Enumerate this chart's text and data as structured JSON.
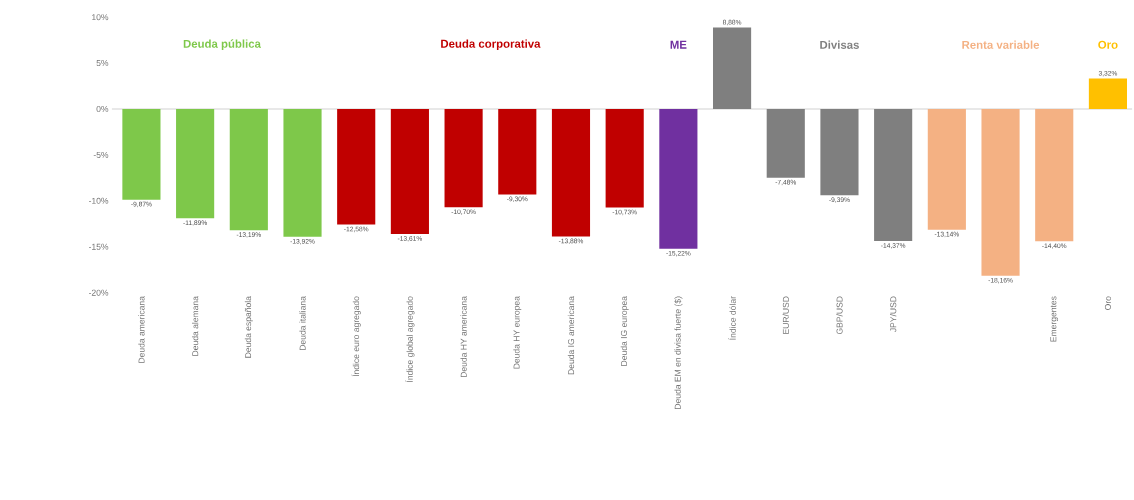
{
  "chart_data": {
    "type": "bar",
    "categories": [
      "Deuda americana",
      "Deuda alemana",
      "Deuda española",
      "Deuda italiana",
      "Índice euro agregado",
      "Índice global agregado",
      "Deuda HY americana",
      "Deuda HY europea",
      "Deuda IG americana",
      "Deuda IG europea",
      "Deuda EM en divisa fuerte ($)",
      "Índice dólar",
      "EUR/USD",
      "GBP/USD",
      "JPY/USD",
      null,
      null,
      "Emergentes",
      "Oro"
    ],
    "values": [
      -9.87,
      -11.89,
      -13.19,
      -13.92,
      -12.58,
      -13.61,
      -10.7,
      -9.3,
      -13.88,
      -10.73,
      -15.22,
      8.88,
      -7.48,
      -9.39,
      -14.37,
      -13.14,
      -18.16,
      -14.4,
      3.32
    ],
    "value_labels": [
      "-9,87%",
      "-11,89%",
      "-13,19%",
      "-13,92%",
      "-12,58%",
      "-13,61%",
      "-10,70%",
      "-9,30%",
      "-13,88%",
      "-10,73%",
      "-15,22%",
      "8,88%",
      "-7,48%",
      "-9,39%",
      "-14,37%",
      "-13,14%",
      "-18,16%",
      "-14,40%",
      "3,32%"
    ],
    "colors": [
      "#7ec84a",
      "#7ec84a",
      "#7ec84a",
      "#7ec84a",
      "#c00000",
      "#c00000",
      "#c00000",
      "#c00000",
      "#c00000",
      "#c00000",
      "#7030a0",
      "#7f7f7f",
      "#7f7f7f",
      "#7f7f7f",
      "#7f7f7f",
      "#f4b183",
      "#f4b183",
      "#f4b183",
      "#ffc000"
    ],
    "annotations": [
      "Deuda pública",
      "Deuda corporativa",
      "ME",
      "Divisas",
      "Renta variable",
      "Oro"
    ],
    "ylim": [
      -20,
      10
    ],
    "yticks": [
      {
        "value": 10,
        "label": "10%"
      },
      {
        "value": 5,
        "label": "5%"
      },
      {
        "value": 0,
        "label": "0%"
      },
      {
        "value": -5,
        "label": "-5%"
      },
      {
        "value": -10,
        "label": "-10%"
      },
      {
        "value": -15,
        "label": "-15%"
      },
      {
        "value": -20,
        "label": "-20%"
      }
    ],
    "ref_lines": [
      {
        "axis": "y",
        "value": 0,
        "color": "#e0e0e0"
      }
    ]
  }
}
